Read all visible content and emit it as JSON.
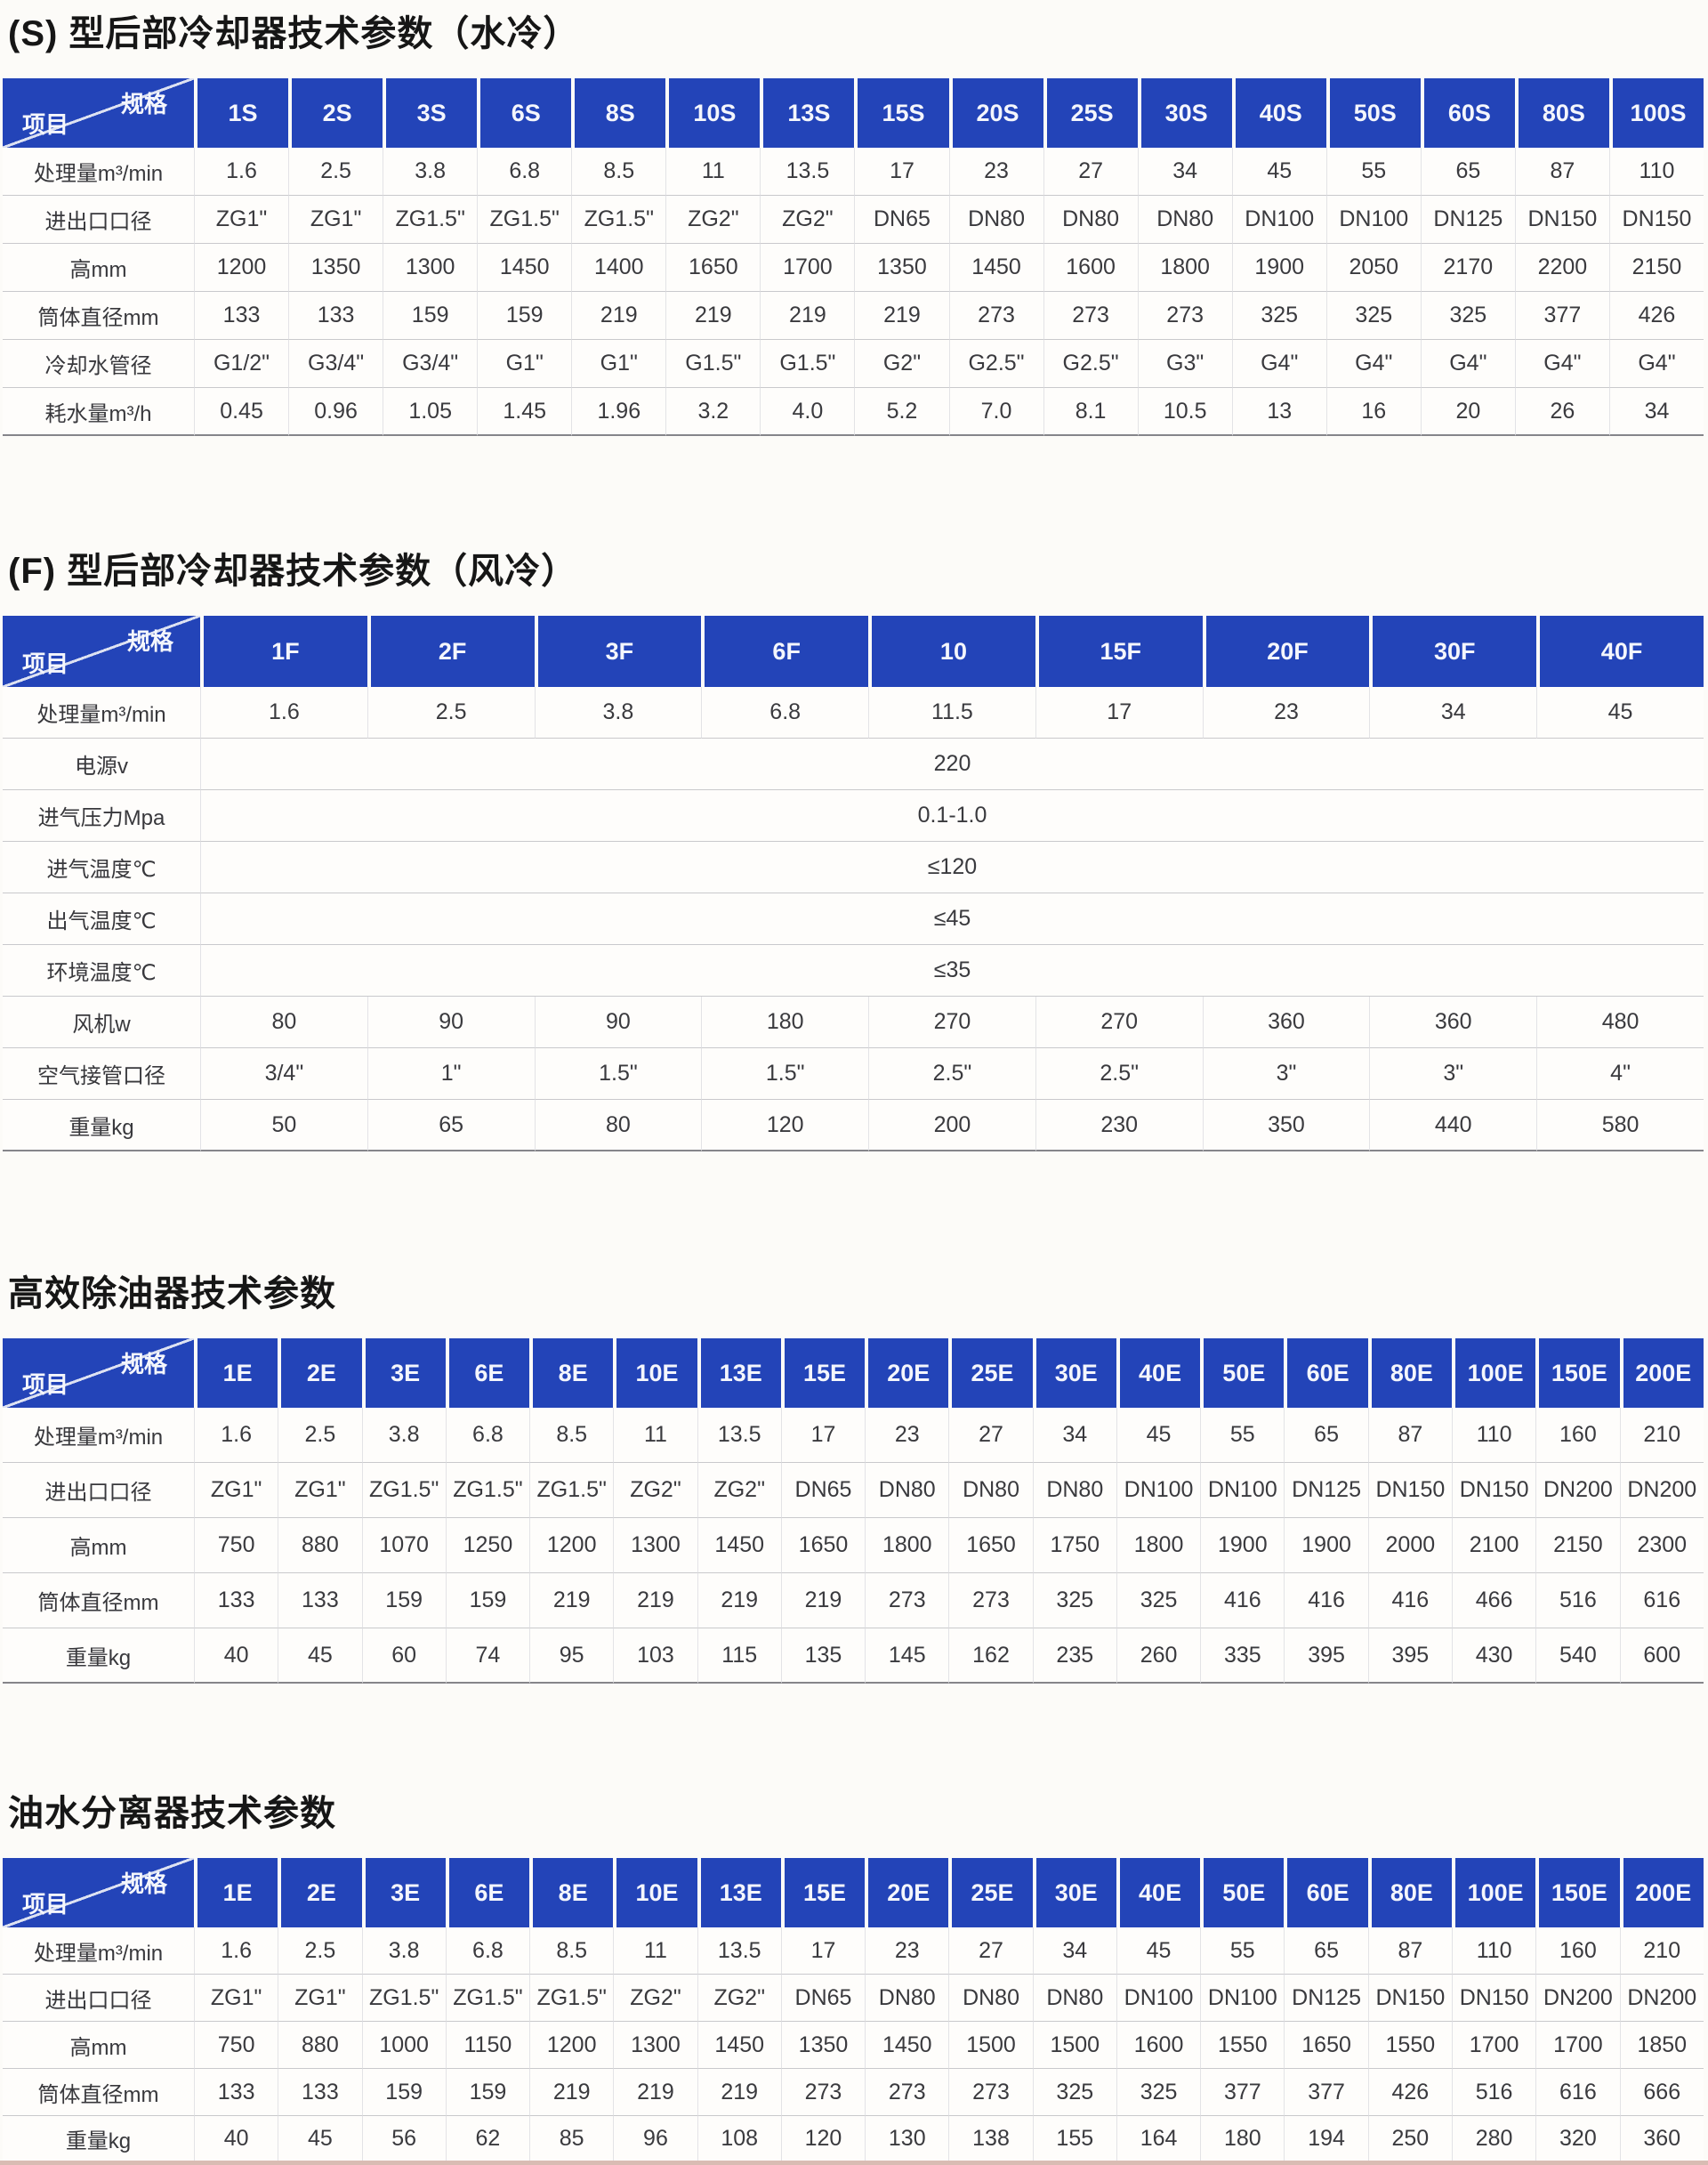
{
  "corner": {
    "spec": "规格",
    "item": "项目"
  },
  "colors": {
    "header_bg": "#2344b8",
    "header_text": "#f4f6fc",
    "body_text": "#3a3a3e",
    "title_text": "#161616"
  },
  "tables": [
    {
      "title": "(S) 型后部冷却器技术参数（水冷）",
      "columns": [
        "1S",
        "2S",
        "3S",
        "6S",
        "8S",
        "10S",
        "13S",
        "15S",
        "20S",
        "25S",
        "30S",
        "40S",
        "50S",
        "60S",
        "80S",
        "100S"
      ],
      "rows": [
        {
          "label": "处理量m³/min",
          "values": [
            "1.6",
            "2.5",
            "3.8",
            "6.8",
            "8.5",
            "11",
            "13.5",
            "17",
            "23",
            "27",
            "34",
            "45",
            "55",
            "65",
            "87",
            "110"
          ]
        },
        {
          "label": "进出口口径",
          "values": [
            "ZG1\"",
            "ZG1\"",
            "ZG1.5\"",
            "ZG1.5\"",
            "ZG1.5\"",
            "ZG2\"",
            "ZG2\"",
            "DN65",
            "DN80",
            "DN80",
            "DN80",
            "DN100",
            "DN100",
            "DN125",
            "DN150",
            "DN150"
          ]
        },
        {
          "label": "高mm",
          "values": [
            "1200",
            "1350",
            "1300",
            "1450",
            "1400",
            "1650",
            "1700",
            "1350",
            "1450",
            "1600",
            "1800",
            "1900",
            "2050",
            "2170",
            "2200",
            "2150"
          ]
        },
        {
          "label": "筒体直径mm",
          "values": [
            "133",
            "133",
            "159",
            "159",
            "219",
            "219",
            "219",
            "219",
            "273",
            "273",
            "273",
            "325",
            "325",
            "325",
            "377",
            "426"
          ]
        },
        {
          "label": "冷却水管径",
          "values": [
            "G1/2\"",
            "G3/4\"",
            "G3/4\"",
            "G1\"",
            "G1\"",
            "G1.5\"",
            "G1.5\"",
            "G2\"",
            "G2.5\"",
            "G2.5\"",
            "G3\"",
            "G4\"",
            "G4\"",
            "G4\"",
            "G4\"",
            "G4\""
          ]
        },
        {
          "label": "耗水量m³/h",
          "values": [
            "0.45",
            "0.96",
            "1.05",
            "1.45",
            "1.96",
            "3.2",
            "4.0",
            "5.2",
            "7.0",
            "8.1",
            "10.5",
            "13",
            "16",
            "20",
            "26",
            "34"
          ]
        }
      ]
    },
    {
      "title": "(F) 型后部冷却器技术参数（风冷）",
      "columns": [
        "1F",
        "2F",
        "3F",
        "6F",
        "10",
        "15F",
        "20F",
        "30F",
        "40F"
      ],
      "rows": [
        {
          "label": "处理量m³/min",
          "values": [
            "1.6",
            "2.5",
            "3.8",
            "6.8",
            "11.5",
            "17",
            "23",
            "34",
            "45"
          ]
        },
        {
          "label": "电源v",
          "merged": "220"
        },
        {
          "label": "进气压力Mpa",
          "merged": "0.1-1.0"
        },
        {
          "label": "进气温度℃",
          "merged": "≤120"
        },
        {
          "label": "出气温度℃",
          "merged": "≤45"
        },
        {
          "label": "环境温度℃",
          "merged": "≤35"
        },
        {
          "label": "风机w",
          "values": [
            "80",
            "90",
            "90",
            "180",
            "270",
            "270",
            "360",
            "360",
            "480"
          ]
        },
        {
          "label": "空气接管口径",
          "values": [
            "3/4\"",
            "1\"",
            "1.5\"",
            "1.5\"",
            "2.5\"",
            "2.5\"",
            "3\"",
            "3\"",
            "4\""
          ]
        },
        {
          "label": "重量kg",
          "values": [
            "50",
            "65",
            "80",
            "120",
            "200",
            "230",
            "350",
            "440",
            "580"
          ]
        }
      ]
    },
    {
      "title": "高效除油器技术参数",
      "columns": [
        "1E",
        "2E",
        "3E",
        "6E",
        "8E",
        "10E",
        "13E",
        "15E",
        "20E",
        "25E",
        "30E",
        "40E",
        "50E",
        "60E",
        "80E",
        "100E",
        "150E",
        "200E"
      ],
      "rows": [
        {
          "label": "处理量m³/min",
          "values": [
            "1.6",
            "2.5",
            "3.8",
            "6.8",
            "8.5",
            "11",
            "13.5",
            "17",
            "23",
            "27",
            "34",
            "45",
            "55",
            "65",
            "87",
            "110",
            "160",
            "210"
          ]
        },
        {
          "label": "进出口口径",
          "values": [
            "ZG1\"",
            "ZG1\"",
            "ZG1.5\"",
            "ZG1.5\"",
            "ZG1.5\"",
            "ZG2\"",
            "ZG2\"",
            "DN65",
            "DN80",
            "DN80",
            "DN80",
            "DN100",
            "DN100",
            "DN125",
            "DN150",
            "DN150",
            "DN200",
            "DN200"
          ]
        },
        {
          "label": "高mm",
          "values": [
            "750",
            "880",
            "1070",
            "1250",
            "1200",
            "1300",
            "1450",
            "1650",
            "1800",
            "1650",
            "1750",
            "1800",
            "1900",
            "1900",
            "2000",
            "2100",
            "2150",
            "2300"
          ]
        },
        {
          "label": "筒体直径mm",
          "values": [
            "133",
            "133",
            "159",
            "159",
            "219",
            "219",
            "219",
            "219",
            "273",
            "273",
            "325",
            "325",
            "416",
            "416",
            "416",
            "466",
            "516",
            "616"
          ]
        },
        {
          "label": "重量kg",
          "values": [
            "40",
            "45",
            "60",
            "74",
            "95",
            "103",
            "115",
            "135",
            "145",
            "162",
            "235",
            "260",
            "335",
            "395",
            "395",
            "430",
            "540",
            "600"
          ]
        }
      ]
    },
    {
      "title": "油水分离器技术参数",
      "columns": [
        "1E",
        "2E",
        "3E",
        "6E",
        "8E",
        "10E",
        "13E",
        "15E",
        "20E",
        "25E",
        "30E",
        "40E",
        "50E",
        "60E",
        "80E",
        "100E",
        "150E",
        "200E"
      ],
      "rows": [
        {
          "label": "处理量m³/min",
          "values": [
            "1.6",
            "2.5",
            "3.8",
            "6.8",
            "8.5",
            "11",
            "13.5",
            "17",
            "23",
            "27",
            "34",
            "45",
            "55",
            "65",
            "87",
            "110",
            "160",
            "210"
          ]
        },
        {
          "label": "进出口口径",
          "values": [
            "ZG1\"",
            "ZG1\"",
            "ZG1.5\"",
            "ZG1.5\"",
            "ZG1.5\"",
            "ZG2\"",
            "ZG2\"",
            "DN65",
            "DN80",
            "DN80",
            "DN80",
            "DN100",
            "DN100",
            "DN125",
            "DN150",
            "DN150",
            "DN200",
            "DN200"
          ]
        },
        {
          "label": "高mm",
          "values": [
            "750",
            "880",
            "1000",
            "1150",
            "1200",
            "1300",
            "1450",
            "1350",
            "1450",
            "1500",
            "1500",
            "1600",
            "1550",
            "1650",
            "1550",
            "1700",
            "1700",
            "1850"
          ]
        },
        {
          "label": "筒体直径mm",
          "values": [
            "133",
            "133",
            "159",
            "159",
            "219",
            "219",
            "219",
            "273",
            "273",
            "273",
            "325",
            "325",
            "377",
            "377",
            "426",
            "516",
            "616",
            "666"
          ]
        },
        {
          "label": "重量kg",
          "values": [
            "40",
            "45",
            "56",
            "62",
            "85",
            "96",
            "108",
            "120",
            "130",
            "138",
            "155",
            "164",
            "180",
            "194",
            "250",
            "280",
            "320",
            "360"
          ]
        }
      ]
    }
  ]
}
